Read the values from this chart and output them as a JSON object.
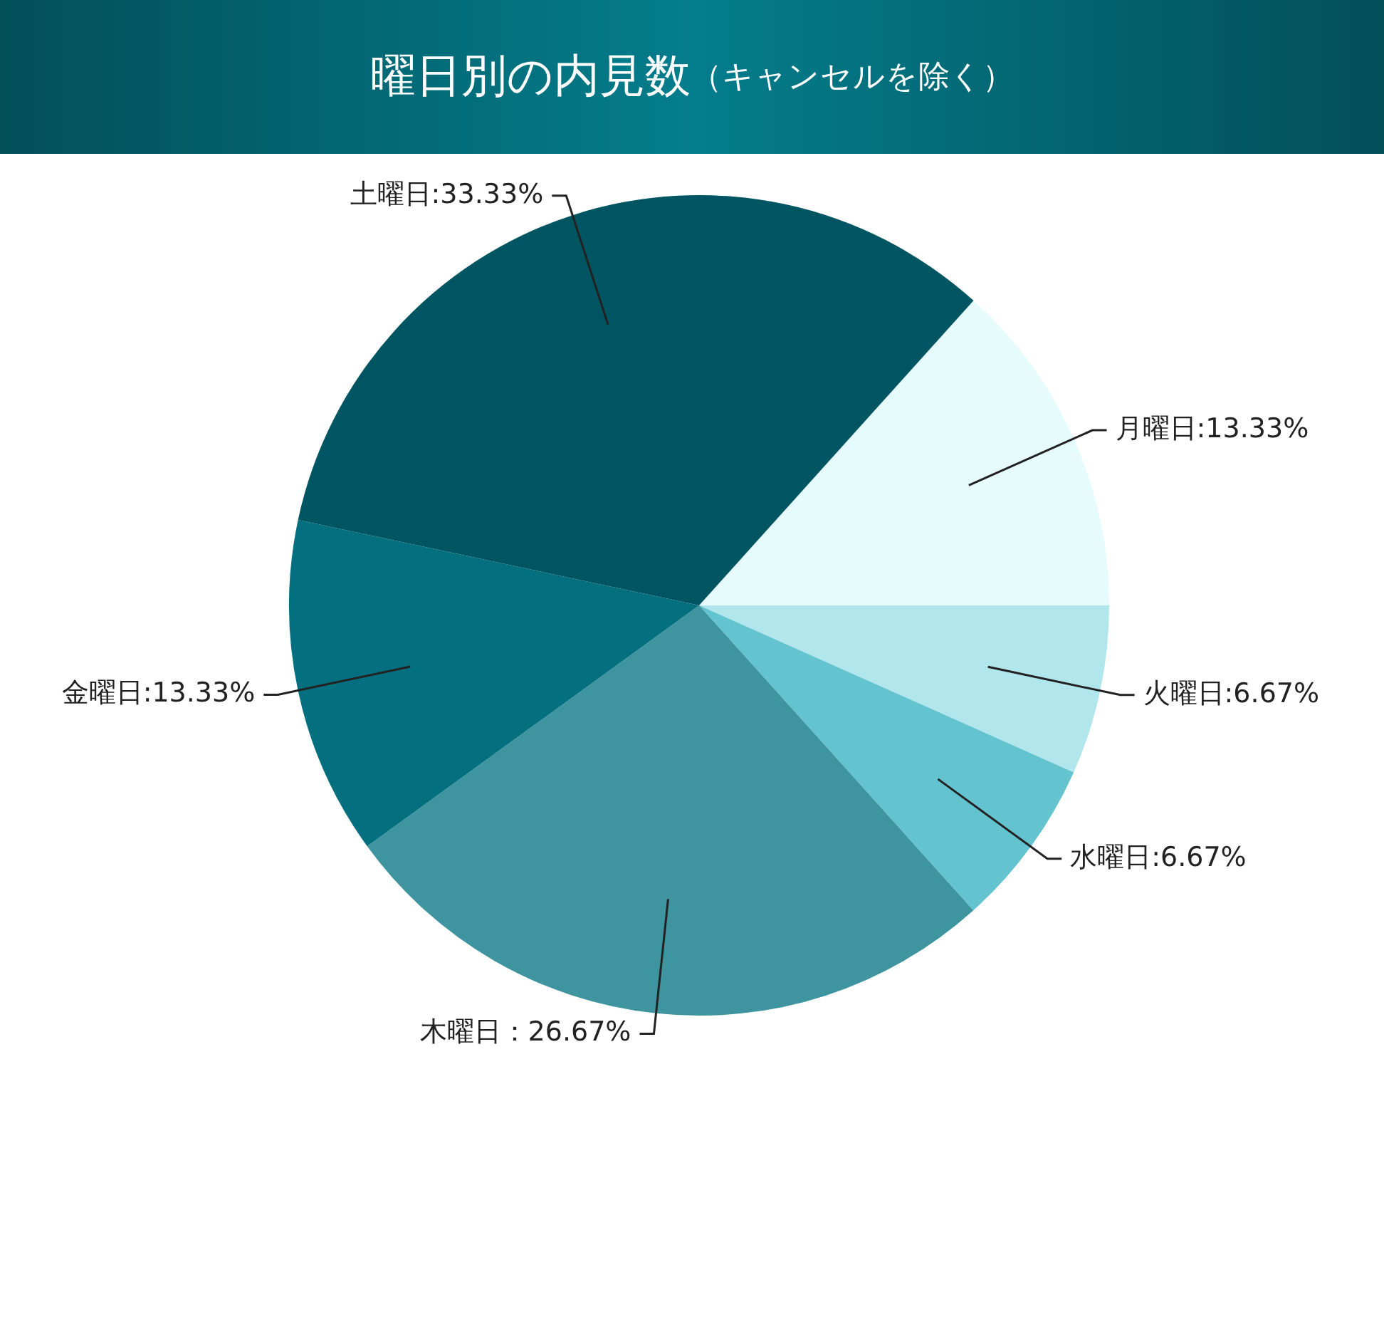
{
  "chart_data": {
    "type": "pie",
    "title": "曜日別の内見数",
    "subtitle": "（キャンセルを除く）",
    "categories": [
      "月曜日",
      "火曜日",
      "水曜日",
      "木曜日",
      "金曜日",
      "土曜日"
    ],
    "values": [
      13.33,
      6.67,
      6.67,
      26.67,
      13.33,
      33.33
    ],
    "colors": [
      "#e6fbfc",
      "#b0e6ec",
      "#63c3cf",
      "#3e95a0",
      "#036f7f",
      "#005562"
    ],
    "value_labels": [
      ":13.33%",
      ":6.67%",
      ":6.67%",
      "：26.67%",
      ":13.33%",
      ":33.33%"
    ],
    "legend": false
  }
}
